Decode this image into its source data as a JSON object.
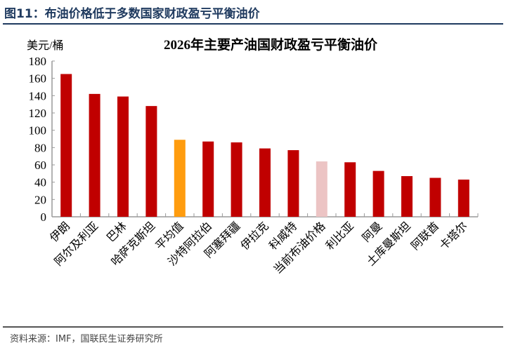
{
  "figure_title": "图11：布油价格低于多数国家财政盈亏平衡油价",
  "source": "资料来源：IMF，国联民生证券研究所",
  "colors": {
    "default": "#c00000",
    "average": "#ff9c0e",
    "brent": "#ecc4c4",
    "axis": "#999999"
  },
  "chart_data": {
    "type": "bar",
    "title": "2026年主要产油国财政盈亏平衡油价",
    "ylabel": "美元/桶",
    "ylim": [
      0,
      180
    ],
    "yticks": [
      0,
      20,
      40,
      60,
      80,
      100,
      120,
      140,
      160,
      180
    ],
    "grid": false,
    "categories": [
      "伊朗",
      "阿尔及利亚",
      "巴林",
      "哈萨克斯坦",
      "平均值",
      "沙特阿拉伯",
      "阿塞拜疆",
      "伊拉克",
      "科威特",
      "当前布油价格",
      "利比亚",
      "阿曼",
      "土库曼斯坦",
      "阿联酋",
      "卡塔尔"
    ],
    "values": [
      165,
      142,
      139,
      128,
      89,
      87,
      86,
      79,
      77,
      64,
      63,
      53,
      47,
      45,
      43
    ],
    "highlight": {
      "平均值": "average",
      "当前布油价格": "brent"
    }
  }
}
